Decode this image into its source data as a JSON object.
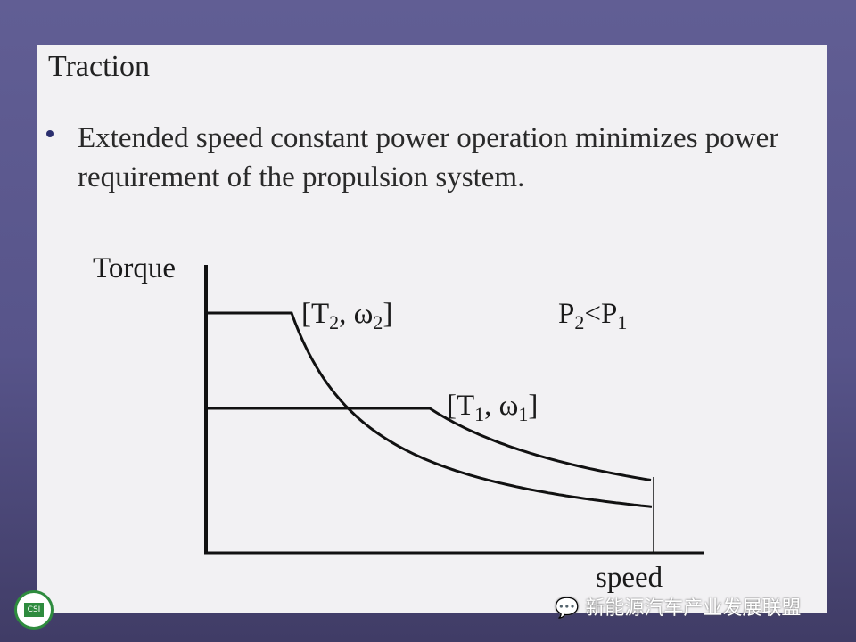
{
  "slide": {
    "title": "Traction",
    "bullet": "Extended speed constant power operation minimizes power requirement of the propulsion system."
  },
  "diagram": {
    "y_axis_label": "Torque",
    "x_axis_label": "speed",
    "point2_label": {
      "base": "[T",
      "sub1": "2",
      "mid": ", ω",
      "sub2": "2",
      "end": "]"
    },
    "point1_label": {
      "base": "[T",
      "sub1": "1",
      "mid": ", ω",
      "sub2": "1",
      "end": "]"
    },
    "relation": {
      "a": "P",
      "a_sub": "2",
      "op": "<P",
      "b_sub": "1"
    }
  },
  "watermark": {
    "text": "新能源汽车产业发展联盟",
    "icon": "wechat-icon",
    "logo_text": "CSI"
  }
}
